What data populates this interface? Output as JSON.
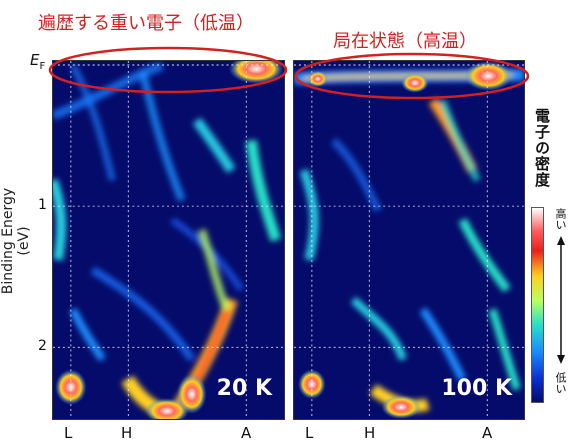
{
  "annotations": {
    "left_title": "遍歴する重い電子（低温）",
    "right_title": "局在状態（高温）"
  },
  "colorbar": {
    "title": "電子の密度",
    "high_label": "高い",
    "low_label": "低い",
    "colors": [
      "#050b6a",
      "#0b2fd0",
      "#1a8cff",
      "#28e0c8",
      "#b7ff60",
      "#ffd020",
      "#e8201c",
      "#ff5a5a",
      "#ffffff"
    ]
  },
  "chart_data": [
    {
      "type": "heatmap",
      "title": "20 K",
      "ylabel": "Binding Energy (eV)",
      "y_ticks": [
        "E_F",
        "1",
        "2"
      ],
      "y_tick_values": [
        0,
        1,
        2
      ],
      "ylim": [
        0,
        2.45
      ],
      "x_ticks": [
        "L",
        "H",
        "A"
      ],
      "x_tick_positions": [
        0.1,
        0.32,
        0.86
      ],
      "features": [
        {
          "x": 0.88,
          "y": 0.03,
          "intensity": 1.0,
          "desc": "heavy-electron band near EF"
        },
        {
          "x": 0.58,
          "y": 2.38,
          "intensity": 0.95
        },
        {
          "x": 0.12,
          "y": 2.2,
          "intensity": 0.9
        },
        {
          "x": 0.65,
          "y": 2.1,
          "intensity": 0.85
        }
      ]
    },
    {
      "type": "heatmap",
      "title": "100 K",
      "ylabel": "Binding Energy (eV)",
      "y_ticks": [
        "E_F",
        "1",
        "2"
      ],
      "y_tick_values": [
        0,
        1,
        2
      ],
      "ylim": [
        0,
        2.45
      ],
      "x_ticks": [
        "L",
        "H",
        "A"
      ],
      "x_tick_positions": [
        0.1,
        0.32,
        0.86
      ],
      "features": [
        {
          "x": 0.88,
          "y": 0.08,
          "intensity": 1.0,
          "desc": "localized flat band"
        },
        {
          "x": 0.52,
          "y": 0.12,
          "intensity": 0.9
        },
        {
          "x": 0.1,
          "y": 0.08,
          "intensity": 0.7
        },
        {
          "x": 0.4,
          "y": 2.38,
          "intensity": 0.9
        },
        {
          "x": 0.08,
          "y": 2.25,
          "intensity": 0.8
        }
      ]
    }
  ],
  "panel_labels": {
    "left_temp": "20 K",
    "right_temp": "100 K"
  },
  "axes": {
    "ylabel": "Binding Energy (eV)",
    "ef_label": "E",
    "ef_sub": "F",
    "y1": "1",
    "y2": "2",
    "xL": "L",
    "xH": "H",
    "xA": "A"
  }
}
